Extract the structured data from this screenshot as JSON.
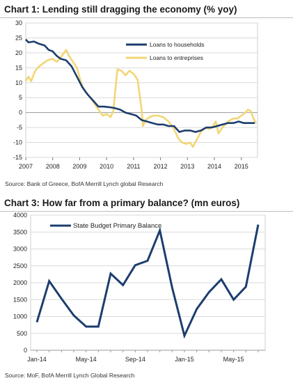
{
  "chart_data": [
    {
      "type": "line",
      "title": "Chart 1: Lending still dragging the economy (% yoy)",
      "source": "Source: Bank of Greece, BofA Merrill Lynch global Research",
      "ylim": [
        -15,
        30
      ],
      "yticks": [
        "30",
        "25",
        "20",
        "15",
        "10",
        "5",
        "0",
        "-5",
        "-10",
        "-15"
      ],
      "xlim": [
        2007,
        2015.6
      ],
      "xticks": [
        "2007",
        "2008",
        "2009",
        "2010",
        "2011",
        "2012",
        "2013",
        "2014",
        "2015"
      ],
      "grid": true,
      "legend_position": "top-right",
      "series": [
        {
          "name": "Loans to households",
          "color": "#1c3d6e",
          "points": [
            [
              2007.0,
              24.5
            ],
            [
              2007.1,
              23.5
            ],
            [
              2007.3,
              23.8
            ],
            [
              2007.5,
              23.0
            ],
            [
              2007.7,
              22.5
            ],
            [
              2007.85,
              21.0
            ],
            [
              2008.0,
              20.5
            ],
            [
              2008.15,
              19.0
            ],
            [
              2008.3,
              18.0
            ],
            [
              2008.5,
              17.5
            ],
            [
              2008.7,
              15.5
            ],
            [
              2008.9,
              12.0
            ],
            [
              2009.1,
              8.5
            ],
            [
              2009.3,
              6.0
            ],
            [
              2009.5,
              4.0
            ],
            [
              2009.7,
              2.0
            ],
            [
              2009.9,
              2.0
            ],
            [
              2010.1,
              1.8
            ],
            [
              2010.3,
              1.5
            ],
            [
              2010.5,
              1.0
            ],
            [
              2010.7,
              0.0
            ],
            [
              2010.9,
              -0.5
            ],
            [
              2011.1,
              -1.0
            ],
            [
              2011.3,
              -2.5
            ],
            [
              2011.5,
              -3.0
            ],
            [
              2011.7,
              -3.5
            ],
            [
              2011.9,
              -4.0
            ],
            [
              2012.1,
              -4.0
            ],
            [
              2012.3,
              -4.5
            ],
            [
              2012.5,
              -4.5
            ],
            [
              2012.7,
              -6.5
            ],
            [
              2012.9,
              -6.0
            ],
            [
              2013.1,
              -6.0
            ],
            [
              2013.3,
              -6.5
            ],
            [
              2013.5,
              -6.0
            ],
            [
              2013.7,
              -5.0
            ],
            [
              2013.9,
              -5.0
            ],
            [
              2014.1,
              -4.5
            ],
            [
              2014.3,
              -4.0
            ],
            [
              2014.5,
              -3.5
            ],
            [
              2014.7,
              -3.5
            ],
            [
              2014.9,
              -3.0
            ],
            [
              2015.1,
              -3.5
            ],
            [
              2015.3,
              -3.5
            ],
            [
              2015.5,
              -3.5
            ]
          ]
        },
        {
          "name": "Loans to entreprises",
          "color": "#f2d675",
          "points": [
            [
              2007.0,
              10.5
            ],
            [
              2007.1,
              12.0
            ],
            [
              2007.2,
              10.5
            ],
            [
              2007.35,
              14.0
            ],
            [
              2007.5,
              15.5
            ],
            [
              2007.65,
              16.5
            ],
            [
              2007.8,
              17.5
            ],
            [
              2008.0,
              18.0
            ],
            [
              2008.15,
              17.0
            ],
            [
              2008.3,
              18.5
            ],
            [
              2008.5,
              21.0
            ],
            [
              2008.6,
              19.0
            ],
            [
              2008.75,
              17.0
            ],
            [
              2008.9,
              15.0
            ],
            [
              2009.05,
              10.0
            ],
            [
              2009.2,
              7.0
            ],
            [
              2009.4,
              5.0
            ],
            [
              2009.55,
              3.0
            ],
            [
              2009.7,
              1.0
            ],
            [
              2009.85,
              -1.0
            ],
            [
              2010.0,
              -0.5
            ],
            [
              2010.15,
              -1.5
            ],
            [
              2010.25,
              0.5
            ],
            [
              2010.4,
              14.5
            ],
            [
              2010.55,
              14.0
            ],
            [
              2010.7,
              12.5
            ],
            [
              2010.85,
              14.0
            ],
            [
              2011.0,
              13.0
            ],
            [
              2011.15,
              11.0
            ],
            [
              2011.3,
              1.0
            ],
            [
              2011.35,
              -4.5
            ],
            [
              2011.45,
              -2.5
            ],
            [
              2011.6,
              -1.5
            ],
            [
              2011.75,
              -1.0
            ],
            [
              2011.9,
              -1.0
            ],
            [
              2012.1,
              -1.5
            ],
            [
              2012.3,
              -3.0
            ],
            [
              2012.5,
              -5.5
            ],
            [
              2012.65,
              -8.5
            ],
            [
              2012.8,
              -10.0
            ],
            [
              2012.95,
              -10.5
            ],
            [
              2013.1,
              -10.0
            ],
            [
              2013.2,
              -11.5
            ],
            [
              2013.35,
              -9.0
            ],
            [
              2013.5,
              -6.5
            ],
            [
              2013.65,
              -5.0
            ],
            [
              2013.8,
              -5.5
            ],
            [
              2013.95,
              -4.5
            ],
            [
              2014.05,
              -3.0
            ],
            [
              2014.15,
              -7.0
            ],
            [
              2014.3,
              -5.0
            ],
            [
              2014.5,
              -3.0
            ],
            [
              2014.7,
              -2.0
            ],
            [
              2014.85,
              -2.0
            ],
            [
              2015.0,
              -1.0
            ],
            [
              2015.15,
              0.0
            ],
            [
              2015.25,
              1.0
            ],
            [
              2015.35,
              0.5
            ],
            [
              2015.45,
              -2.0
            ],
            [
              2015.55,
              -3.5
            ]
          ]
        }
      ]
    },
    {
      "type": "line",
      "title": "Chart 3: How far from a primary balance? (mn euros)",
      "source": "Source: MoF, BofA Merrill Lynch Global Research",
      "ylim": [
        0,
        4000
      ],
      "yticks": [
        "4000",
        "3500",
        "3000",
        "2500",
        "2000",
        "1500",
        "1000",
        "500",
        "0"
      ],
      "xtick_labels": [
        "Jan-14",
        "May-14",
        "Sep-14",
        "Jan-15",
        "May-15"
      ],
      "xtick_positions": [
        0,
        4,
        8,
        12,
        16
      ],
      "grid": true,
      "legend_position": "top-left",
      "series": [
        {
          "name": "State Budget Primary Balance",
          "color": "#1c3d6e",
          "x": [
            0,
            1,
            2,
            3,
            4,
            5,
            6,
            7,
            8,
            9,
            10,
            11,
            12,
            13,
            14,
            15,
            16,
            17,
            18
          ],
          "values": [
            830,
            2050,
            1530,
            1030,
            700,
            700,
            2270,
            1930,
            2520,
            2650,
            3550,
            1860,
            430,
            1220,
            1720,
            2100,
            1500,
            1880,
            3720
          ]
        }
      ]
    }
  ]
}
